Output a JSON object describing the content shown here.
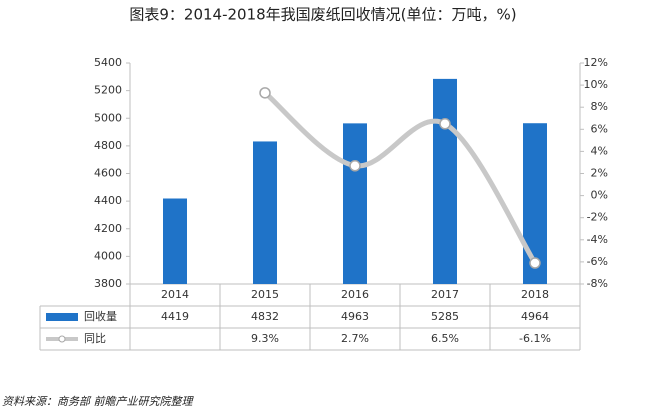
{
  "chart_data": {
    "type": "bar-line",
    "title": "图表9：2014-2018年我国废纸回收情况(单位：万吨，%)",
    "source": "资料来源：商务部 前瞻产业研究院整理",
    "categories": [
      "2014",
      "2015",
      "2016",
      "2017",
      "2018"
    ],
    "series": [
      {
        "name": "回收量",
        "type": "bar",
        "color": "#1f73c8",
        "values": [
          4419,
          4832,
          4963,
          5285,
          4964
        ]
      },
      {
        "name": "同比",
        "type": "line",
        "axis": "y2",
        "color": "#c8c8c8",
        "values": [
          null,
          9.3,
          2.7,
          6.5,
          -6.1
        ],
        "value_labels": [
          null,
          "9.3%",
          "2.7%",
          "6.5%",
          "-6.1%"
        ]
      }
    ],
    "ylim": [
      3800,
      5400
    ],
    "yticks": [
      3800,
      4000,
      4200,
      4400,
      4600,
      4800,
      5000,
      5200,
      5400
    ],
    "y2lim": [
      -8,
      12
    ],
    "y2ticks": [
      {
        "value": -8,
        "label": "-8%"
      },
      {
        "value": -6,
        "label": "-6%"
      },
      {
        "value": -4,
        "label": "-4%"
      },
      {
        "value": -2,
        "label": "-2%"
      },
      {
        "value": 0,
        "label": "0%"
      },
      {
        "value": 2,
        "label": "2%"
      },
      {
        "value": 4,
        "label": "4%"
      },
      {
        "value": 6,
        "label": "6%"
      },
      {
        "value": 8,
        "label": "8%"
      },
      {
        "value": 10,
        "label": "10%"
      },
      {
        "value": 12,
        "label": "12%"
      }
    ]
  }
}
